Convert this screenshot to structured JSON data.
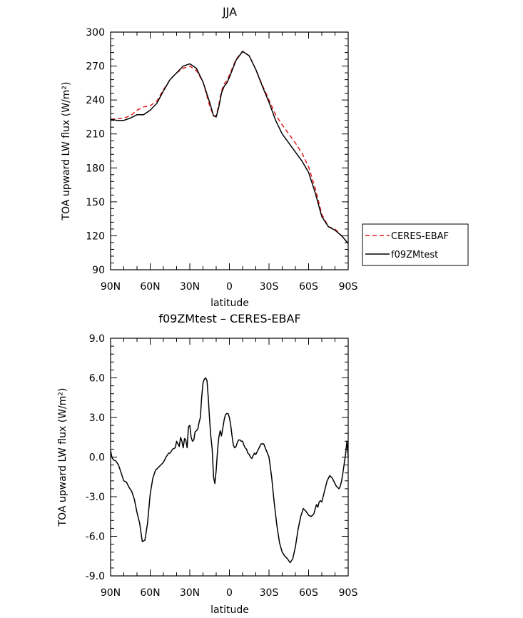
{
  "chart_data": [
    {
      "type": "line",
      "title": "JJA",
      "xlabel": "latitude",
      "ylabel": "TOA upward LW flux (W/m²)",
      "xlim": [
        90,
        -90
      ],
      "ylim": [
        90,
        300
      ],
      "x_ticks": [
        90,
        60,
        30,
        0,
        -30,
        -60,
        -90
      ],
      "x_tick_labels": [
        "90N",
        "60N",
        "30N",
        "0",
        "30S",
        "60S",
        "90S"
      ],
      "y_ticks": [
        90,
        120,
        150,
        180,
        210,
        240,
        270,
        300
      ],
      "y_tick_labels": [
        "90",
        "120",
        "150",
        "180",
        "210",
        "240",
        "270",
        "300"
      ],
      "grid": false,
      "legend_position": "right",
      "series": [
        {
          "name": "CERES-EBAF",
          "color": "#e41a1c",
          "style": "dashed",
          "x": [
            90,
            80,
            75,
            70,
            65,
            60,
            55,
            50,
            45,
            40,
            35,
            30,
            25,
            20,
            15,
            12,
            10,
            8,
            6,
            4,
            2,
            0,
            -5,
            -10,
            -15,
            -20,
            -25,
            -30,
            -35,
            -40,
            -45,
            -50,
            -55,
            -60,
            -65,
            -70,
            -75,
            -80,
            -85,
            -88,
            -90
          ],
          "y": [
            223,
            224,
            226,
            231,
            234,
            235,
            239,
            249,
            258,
            264,
            268,
            270,
            266,
            256,
            235,
            226,
            226,
            236,
            248,
            254,
            257,
            262,
            276,
            283,
            279,
            267,
            253,
            240,
            227,
            218,
            210,
            202,
            193,
            181,
            162,
            139,
            128,
            126,
            120,
            116,
            113
          ]
        },
        {
          "name": "f09ZMtest",
          "color": "#000000",
          "style": "solid",
          "x": [
            90,
            85,
            80,
            75,
            70,
            65,
            60,
            55,
            50,
            45,
            40,
            35,
            30,
            25,
            20,
            15,
            12,
            10,
            8,
            6,
            4,
            2,
            0,
            -5,
            -10,
            -15,
            -20,
            -25,
            -30,
            -35,
            -40,
            -45,
            -50,
            -55,
            -60,
            -65,
            -70,
            -75,
            -80,
            -85,
            -88,
            -90
          ],
          "y": [
            223,
            222,
            222,
            224,
            227,
            227,
            231,
            237,
            248,
            258,
            264,
            270,
            272,
            268,
            256,
            238,
            226,
            225,
            234,
            246,
            252,
            255,
            260,
            275,
            283,
            279,
            267,
            252,
            238,
            222,
            210,
            202,
            194,
            186,
            176,
            158,
            137,
            128,
            125,
            120,
            116,
            113
          ]
        }
      ]
    },
    {
      "type": "line",
      "title": "f09ZMtest – CERES-EBAF",
      "xlabel": "latitude",
      "ylabel": "TOA upward LW flux (W/m²)",
      "xlim": [
        90,
        -90
      ],
      "ylim": [
        -9,
        9
      ],
      "x_ticks": [
        90,
        60,
        30,
        0,
        -30,
        -60,
        -90
      ],
      "x_tick_labels": [
        "90N",
        "60N",
        "30N",
        "0",
        "30S",
        "60S",
        "90S"
      ],
      "y_ticks": [
        -9,
        -6,
        -3,
        0,
        3,
        6,
        9
      ],
      "y_tick_labels": [
        "-9.0",
        "-6.0",
        "-3.0",
        "0.0",
        "3.0",
        "6.0",
        "9.0"
      ],
      "grid": false,
      "series": [
        {
          "color": "#000000",
          "style": "solid",
          "x": [
            90,
            89,
            88,
            86,
            84,
            82,
            80,
            78,
            76,
            74,
            72,
            70,
            68,
            66,
            64,
            62,
            60,
            58,
            56,
            54,
            52,
            50,
            48,
            46,
            45,
            43,
            41,
            40,
            38,
            37,
            36,
            35,
            34,
            33,
            32,
            31,
            30,
            29,
            28,
            27,
            26,
            25,
            24,
            23,
            22,
            21,
            20,
            19,
            18,
            17,
            16,
            15,
            14,
            13,
            12,
            11,
            10,
            9,
            8,
            7,
            6,
            5,
            4,
            3,
            2,
            1,
            0,
            -1,
            -2,
            -3,
            -4,
            -5,
            -6,
            -7,
            -8,
            -9,
            -10,
            -11,
            -12,
            -13,
            -14,
            -15,
            -16,
            -17,
            -18,
            -19,
            -20,
            -22,
            -24,
            -26,
            -28,
            -30,
            -32,
            -34,
            -36,
            -38,
            -40,
            -42,
            -44,
            -46,
            -48,
            -50,
            -52,
            -54,
            -56,
            -58,
            -60,
            -62,
            -64,
            -65,
            -66,
            -67,
            -68,
            -69,
            -70,
            -71,
            -72,
            -73,
            -74,
            -75,
            -76,
            -77,
            -78,
            -79,
            -80,
            -81,
            -82,
            -83,
            -84,
            -85,
            -86,
            -87,
            -88,
            -89,
            -90
          ],
          "y": [
            0.5,
            0.0,
            -0.2,
            -0.3,
            -0.6,
            -1.2,
            -1.8,
            -1.9,
            -2.3,
            -2.6,
            -3.2,
            -4.2,
            -5.0,
            -6.4,
            -6.3,
            -5.0,
            -2.8,
            -1.6,
            -1.0,
            -0.8,
            -0.6,
            -0.4,
            0.0,
            0.3,
            0.3,
            0.6,
            0.7,
            1.2,
            0.8,
            1.5,
            1.2,
            0.7,
            1.4,
            1.3,
            0.7,
            2.3,
            2.4,
            1.5,
            1.2,
            1.3,
            1.9,
            2.0,
            2.1,
            2.6,
            3.0,
            4.5,
            5.6,
            5.9,
            6.0,
            5.8,
            4.5,
            2.8,
            1.5,
            0.6,
            -1.5,
            -2.0,
            -1.0,
            0.5,
            1.5,
            2.0,
            1.6,
            2.2,
            2.8,
            3.2,
            3.3,
            3.3,
            3.0,
            2.4,
            1.6,
            0.9,
            0.7,
            0.8,
            1.1,
            1.3,
            1.3,
            1.2,
            1.2,
            0.9,
            0.7,
            0.6,
            0.3,
            0.2,
            0.0,
            -0.1,
            0.1,
            0.3,
            0.2,
            0.6,
            1.0,
            1.0,
            0.5,
            0.0,
            -1.5,
            -3.5,
            -5.2,
            -6.5,
            -7.2,
            -7.5,
            -7.7,
            -8.0,
            -7.7,
            -6.8,
            -5.5,
            -4.5,
            -3.9,
            -4.1,
            -4.4,
            -4.5,
            -4.3,
            -3.9,
            -3.6,
            -3.8,
            -3.4,
            -3.3,
            -3.4,
            -3.0,
            -2.6,
            -2.2,
            -1.8,
            -1.6,
            -1.4,
            -1.5,
            -1.6,
            -1.8,
            -2.0,
            -2.2,
            -2.3,
            -2.4,
            -2.2,
            -1.8,
            -1.2,
            -0.5,
            0.2,
            1.2,
            0.0
          ]
        }
      ]
    }
  ]
}
